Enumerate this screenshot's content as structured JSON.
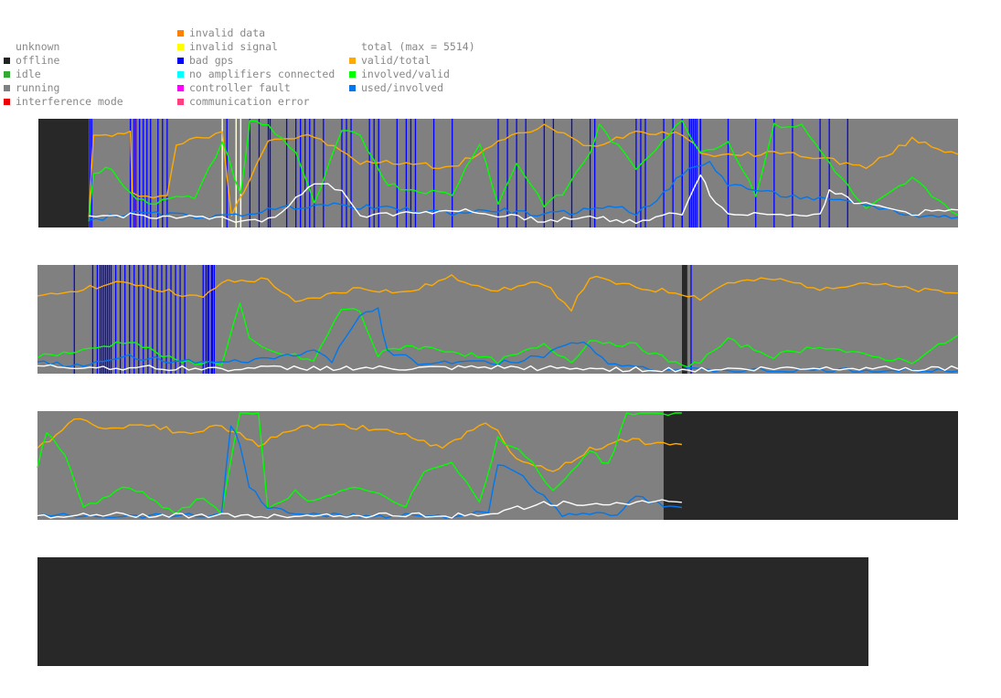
{
  "legend": {
    "col1": [
      {
        "label": "unknown",
        "color": ""
      },
      {
        "label": "offline",
        "color": "#222222"
      },
      {
        "label": "idle",
        "color": "#33aa33"
      },
      {
        "label": "running",
        "color": "#808080"
      },
      {
        "label": "interference mode",
        "color": "#ee0000"
      }
    ],
    "col2": [
      {
        "label": "invalid data",
        "color": "#ff8000"
      },
      {
        "label": "invalid signal",
        "color": "#ffff00"
      },
      {
        "label": "bad gps",
        "color": "#0000ff"
      },
      {
        "label": "no amplifiers connected",
        "color": "#00ffff"
      },
      {
        "label": "controller fault",
        "color": "#ff00ff"
      },
      {
        "label": "communication error",
        "color": "#ff4080"
      }
    ],
    "col3": [
      {
        "label": "total (max = 5514)",
        "color": ""
      },
      {
        "label": "valid/total",
        "color": "#ffaa00"
      },
      {
        "label": "involved/valid",
        "color": "#00ff00"
      },
      {
        "label": "used/involved",
        "color": "#0077ee"
      }
    ]
  },
  "chart_data": [
    {
      "type": "line",
      "status_segments": [
        {
          "from": 0,
          "to": 0.055,
          "status": "offline"
        },
        {
          "from": 0.055,
          "to": 1.0,
          "status": "running"
        }
      ],
      "bad_gps_marks": [
        0.056,
        0.058,
        0.1,
        0.104,
        0.106,
        0.11,
        0.114,
        0.118,
        0.122,
        0.13,
        0.135,
        0.14,
        0.2,
        0.205,
        0.215,
        0.22,
        0.23,
        0.24,
        0.25,
        0.252,
        0.27,
        0.28,
        0.285,
        0.29,
        0.295,
        0.3,
        0.31,
        0.33,
        0.335,
        0.34,
        0.36,
        0.365,
        0.37,
        0.39,
        0.4,
        0.405,
        0.41,
        0.43,
        0.45,
        0.5,
        0.51,
        0.52,
        0.53,
        0.55,
        0.56,
        0.58,
        0.6,
        0.605,
        0.65,
        0.655,
        0.66,
        0.68,
        0.69,
        0.7,
        0.72,
        0.7,
        0.708,
        0.71,
        0.712,
        0.714,
        0.716,
        0.72,
        0.75,
        0.78,
        0.8,
        0.82,
        0.85,
        0.86,
        0.88
      ],
      "other_marks": [
        {
          "at": 0.105,
          "color": "#cc2020"
        },
        {
          "at": 0.2,
          "color": "#ffffdd"
        },
        {
          "at": 0.215,
          "color": "#ffffdd"
        },
        {
          "at": 0.22,
          "color": "#ffffdd"
        }
      ],
      "series": [
        {
          "name": "valid/total",
          "color": "#ffaa00",
          "x": [
            0.055,
            0.06,
            0.1,
            0.102,
            0.14,
            0.15,
            0.2,
            0.21,
            0.25,
            0.3,
            0.35,
            0.4,
            0.45,
            0.5,
            0.55,
            0.6,
            0.65,
            0.7,
            0.72,
            0.75,
            0.8,
            0.85,
            0.9,
            0.95,
            1.0
          ],
          "y": [
            0.1,
            0.85,
            0.88,
            0.3,
            0.28,
            0.78,
            0.88,
            0.1,
            0.82,
            0.85,
            0.6,
            0.6,
            0.55,
            0.8,
            0.95,
            0.75,
            0.9,
            0.88,
            0.7,
            0.66,
            0.7,
            0.65,
            0.55,
            0.82,
            0.68
          ]
        },
        {
          "name": "involved/valid",
          "color": "#00ff00",
          "x": [
            0.055,
            0.06,
            0.08,
            0.1,
            0.12,
            0.15,
            0.17,
            0.2,
            0.22,
            0.23,
            0.25,
            0.28,
            0.3,
            0.33,
            0.35,
            0.38,
            0.4,
            0.45,
            0.48,
            0.5,
            0.52,
            0.55,
            0.57,
            0.6,
            0.61,
            0.65,
            0.7,
            0.72,
            0.75,
            0.78,
            0.8,
            0.83,
            0.86,
            0.9,
            0.95,
            1.0
          ],
          "y": [
            0.05,
            0.5,
            0.55,
            0.3,
            0.2,
            0.3,
            0.25,
            0.8,
            0.3,
            1.0,
            0.95,
            0.7,
            0.2,
            0.9,
            0.85,
            0.4,
            0.35,
            0.3,
            0.8,
            0.2,
            0.6,
            0.2,
            0.3,
            0.7,
            0.95,
            0.55,
            1.0,
            0.7,
            0.8,
            0.3,
            0.95,
            0.95,
            0.6,
            0.15,
            0.45,
            0.1
          ]
        },
        {
          "name": "used/involved",
          "color": "#0077ee",
          "x": [
            0.055,
            0.1,
            0.15,
            0.2,
            0.25,
            0.3,
            0.35,
            0.4,
            0.45,
            0.5,
            0.55,
            0.6,
            0.62,
            0.65,
            0.68,
            0.7,
            0.73,
            0.75,
            0.8,
            0.85,
            0.9,
            0.95,
            1.0
          ],
          "y": [
            0.05,
            0.12,
            0.1,
            0.08,
            0.15,
            0.2,
            0.18,
            0.15,
            0.12,
            0.15,
            0.1,
            0.15,
            0.2,
            0.12,
            0.3,
            0.5,
            0.6,
            0.4,
            0.3,
            0.25,
            0.2,
            0.1,
            0.08
          ]
        },
        {
          "name": "total",
          "color": "#ffffff",
          "x": [
            0.055,
            0.1,
            0.15,
            0.2,
            0.25,
            0.28,
            0.3,
            0.33,
            0.35,
            0.4,
            0.45,
            0.5,
            0.55,
            0.6,
            0.65,
            0.7,
            0.72,
            0.73,
            0.75,
            0.8,
            0.85,
            0.86,
            0.88,
            0.9,
            0.95,
            1.0
          ],
          "y": [
            0.08,
            0.1,
            0.08,
            0.06,
            0.05,
            0.25,
            0.4,
            0.35,
            0.1,
            0.12,
            0.15,
            0.1,
            0.05,
            0.08,
            0.04,
            0.12,
            0.5,
            0.3,
            0.1,
            0.12,
            0.1,
            0.35,
            0.25,
            0.2,
            0.12,
            0.15
          ]
        }
      ]
    },
    {
      "type": "line",
      "status_segments": [
        {
          "from": 0,
          "to": 0.7,
          "status": "running"
        },
        {
          "from": 0.7,
          "to": 0.706,
          "status": "offline"
        },
        {
          "from": 0.706,
          "to": 1.0,
          "status": "running"
        }
      ],
      "bad_gps_marks": [
        0.04,
        0.06,
        0.065,
        0.068,
        0.07,
        0.072,
        0.074,
        0.076,
        0.078,
        0.08,
        0.085,
        0.09,
        0.095,
        0.1,
        0.105,
        0.11,
        0.115,
        0.12,
        0.125,
        0.13,
        0.135,
        0.14,
        0.145,
        0.15,
        0.155,
        0.16,
        0.18,
        0.185,
        0.19,
        0.183,
        0.186,
        0.189,
        0.192,
        0.71
      ],
      "other_marks": [],
      "series": [
        {
          "name": "valid/total",
          "color": "#ffaa00",
          "x": [
            0,
            0.05,
            0.1,
            0.15,
            0.18,
            0.2,
            0.25,
            0.28,
            0.3,
            0.35,
            0.4,
            0.45,
            0.5,
            0.55,
            0.58,
            0.6,
            0.65,
            0.7,
            0.72,
            0.75,
            0.8,
            0.85,
            0.9,
            0.95,
            1.0
          ],
          "y": [
            0.7,
            0.8,
            0.85,
            0.75,
            0.7,
            0.85,
            0.88,
            0.65,
            0.7,
            0.8,
            0.75,
            0.9,
            0.78,
            0.85,
            0.6,
            0.9,
            0.8,
            0.75,
            0.7,
            0.85,
            0.88,
            0.8,
            0.85,
            0.78,
            0.75
          ]
        },
        {
          "name": "involved/valid",
          "color": "#00ff00",
          "x": [
            0,
            0.05,
            0.1,
            0.15,
            0.2,
            0.22,
            0.23,
            0.25,
            0.28,
            0.3,
            0.33,
            0.35,
            0.37,
            0.38,
            0.4,
            0.45,
            0.5,
            0.55,
            0.58,
            0.6,
            0.65,
            0.7,
            0.72,
            0.75,
            0.8,
            0.85,
            0.9,
            0.95,
            1.0
          ],
          "y": [
            0.15,
            0.2,
            0.3,
            0.1,
            0.08,
            0.65,
            0.3,
            0.2,
            0.15,
            0.1,
            0.6,
            0.58,
            0.15,
            0.2,
            0.25,
            0.2,
            0.1,
            0.25,
            0.1,
            0.3,
            0.25,
            0.05,
            0.1,
            0.3,
            0.15,
            0.25,
            0.15,
            0.1,
            0.35
          ]
        },
        {
          "name": "used/involved",
          "color": "#0077ee",
          "x": [
            0,
            0.05,
            0.1,
            0.15,
            0.2,
            0.25,
            0.3,
            0.32,
            0.35,
            0.37,
            0.38,
            0.4,
            0.42,
            0.45,
            0.5,
            0.55,
            0.58,
            0.6,
            0.62,
            0.65,
            0.68,
            0.7,
            0.72,
            0.75,
            0.8,
            0.85,
            0.9,
            0.95,
            1.0
          ],
          "y": [
            0.1,
            0.05,
            0.15,
            0.1,
            0.08,
            0.12,
            0.2,
            0.1,
            0.55,
            0.6,
            0.2,
            0.15,
            0.05,
            0.1,
            0.08,
            0.15,
            0.3,
            0.25,
            0.1,
            0.05,
            0.02,
            0.02,
            0.01,
            0.01,
            0.01,
            0.01,
            0.01,
            0.01,
            0.01
          ]
        },
        {
          "name": "total",
          "color": "#ffffff",
          "x": [
            0,
            0.1,
            0.2,
            0.3,
            0.4,
            0.5,
            0.6,
            0.7,
            0.8,
            0.9,
            1.0
          ],
          "y": [
            0.05,
            0.04,
            0.03,
            0.04,
            0.03,
            0.04,
            0.03,
            0.02,
            0.03,
            0.04,
            0.03
          ]
        }
      ]
    },
    {
      "type": "line",
      "status_segments": [
        {
          "from": 0,
          "to": 0.68,
          "status": "running"
        },
        {
          "from": 0.68,
          "to": 1.0,
          "status": "offline"
        }
      ],
      "bad_gps_marks": [],
      "other_marks": [],
      "series": [
        {
          "name": "valid/total",
          "color": "#ffaa00",
          "x": [
            0,
            0.04,
            0.08,
            0.12,
            0.16,
            0.2,
            0.24,
            0.28,
            0.32,
            0.36,
            0.4,
            0.44,
            0.48,
            0.5,
            0.52,
            0.56,
            0.6,
            0.64,
            0.68,
            0.7
          ],
          "y": [
            0.65,
            0.95,
            0.85,
            0.9,
            0.8,
            0.88,
            0.7,
            0.85,
            0.9,
            0.85,
            0.8,
            0.65,
            0.9,
            0.85,
            0.55,
            0.45,
            0.65,
            0.75,
            0.7,
            0.7
          ]
        },
        {
          "name": "involved/valid",
          "color": "#00ff00",
          "x": [
            0,
            0.01,
            0.03,
            0.05,
            0.1,
            0.15,
            0.18,
            0.2,
            0.22,
            0.24,
            0.25,
            0.28,
            0.3,
            0.35,
            0.4,
            0.42,
            0.45,
            0.48,
            0.5,
            0.53,
            0.56,
            0.6,
            0.62,
            0.64,
            0.7
          ],
          "y": [
            0.5,
            0.8,
            0.6,
            0.1,
            0.3,
            0.05,
            0.2,
            0.05,
            1.0,
            1.0,
            0.1,
            0.25,
            0.15,
            0.3,
            0.1,
            0.45,
            0.55,
            0.15,
            0.75,
            0.6,
            0.25,
            0.65,
            0.5,
            1.0,
            1.0
          ]
        },
        {
          "name": "used/involved",
          "color": "#0077ee",
          "x": [
            0,
            0.05,
            0.1,
            0.15,
            0.18,
            0.2,
            0.21,
            0.22,
            0.23,
            0.25,
            0.28,
            0.3,
            0.35,
            0.4,
            0.45,
            0.49,
            0.5,
            0.52,
            0.55,
            0.57,
            0.6,
            0.63,
            0.65,
            0.68,
            0.7
          ],
          "y": [
            0.02,
            0.03,
            0.02,
            0.03,
            0.02,
            0.05,
            0.9,
            0.7,
            0.3,
            0.1,
            0.05,
            0.03,
            0.02,
            0.03,
            0.02,
            0.05,
            0.5,
            0.45,
            0.2,
            0.02,
            0.03,
            0.05,
            0.2,
            0.12,
            0.1
          ]
        },
        {
          "name": "total",
          "color": "#ffffff",
          "x": [
            0,
            0.1,
            0.2,
            0.3,
            0.4,
            0.45,
            0.5,
            0.55,
            0.6,
            0.65,
            0.7
          ],
          "y": [
            0.02,
            0.03,
            0.02,
            0.02,
            0.03,
            0.02,
            0.05,
            0.15,
            0.12,
            0.15,
            0.15
          ]
        }
      ]
    },
    {
      "type": "line",
      "status_segments": [
        {
          "from": 0,
          "to": 1.0,
          "status": "offline"
        }
      ],
      "bad_gps_marks": [],
      "other_marks": [],
      "series": []
    }
  ],
  "status_colors": {
    "offline": "#282828",
    "running": "#808080",
    "bad_gps": "#0000ff"
  }
}
